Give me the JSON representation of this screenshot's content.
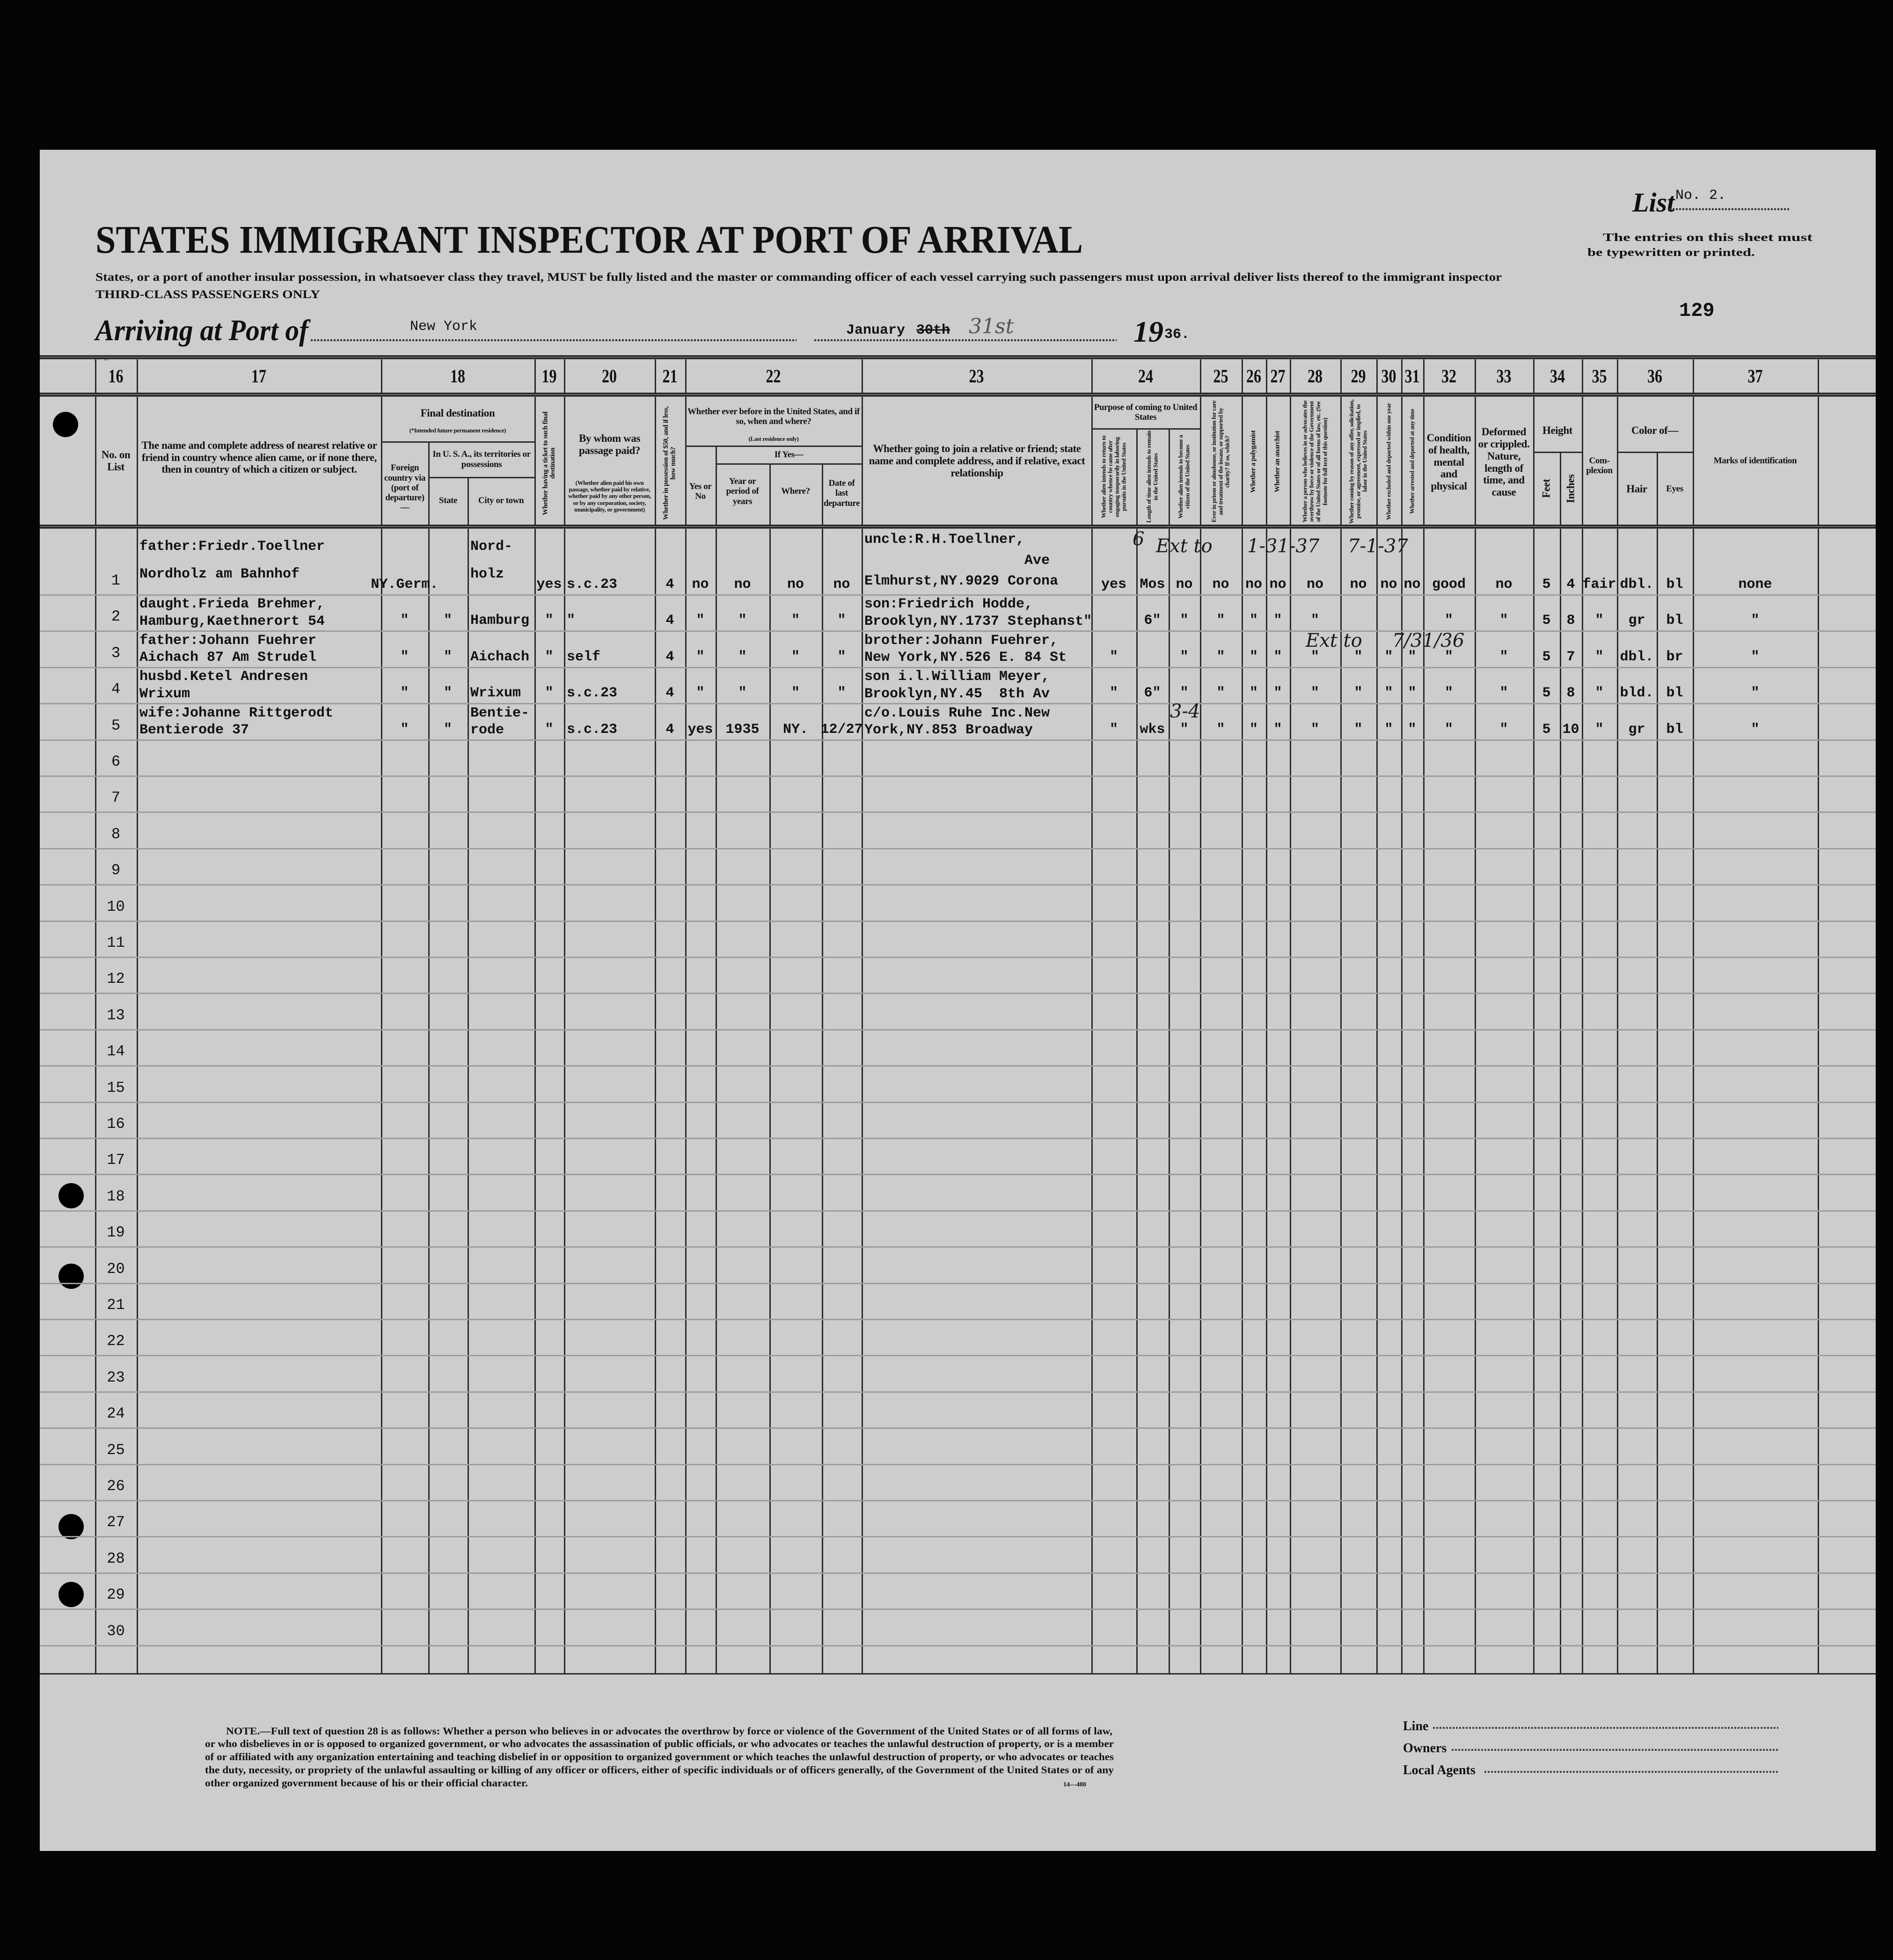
{
  "form": {
    "title": "STATES IMMIGRANT INSPECTOR AT PORT OF ARRIVAL",
    "subtitle": "States, or a port of another insular possession, in whatsoever class they travel, MUST be fully listed and the master or commanding officer of each vessel carrying such passengers must upon arrival deliver lists thereof to the immigrant inspector",
    "class_note": "THIRD-CLASS PASSENGERS ONLY",
    "list_label": "List",
    "list_number": "No. 2.",
    "instructions_line1": "The entries on this sheet must",
    "instructions_line2": "be typewritten or printed.",
    "sheet_number": "129",
    "arriving_label": "Arriving at Port of",
    "port": "New York",
    "month": "January",
    "day_struck": "30th",
    "day_handwritten": "31st",
    "year_prefix": "19",
    "year_suffix": "36.",
    "corner_mark": "14-48"
  },
  "column_numbers": [
    "16",
    "17",
    "18",
    "19",
    "20",
    "21",
    "22",
    "23",
    "24",
    "25",
    "26",
    "27",
    "28",
    "29",
    "30",
    "31",
    "32",
    "33",
    "34",
    "35",
    "36",
    "37"
  ],
  "headers": {
    "c16": "No. on List",
    "c17": "The name and complete address of nearest relative or friend in country whence alien came, or if none there, then in country of which a citizen or subject.",
    "c18_group": "Final destination",
    "c18_note": "(*Intended future permanent residence)",
    "c18_foreign": "Foreign country via (port of departure)—",
    "c18_usa": "In U. S. A., its territories or possessions",
    "c18_state": "State",
    "c18_city": "City or town",
    "c19": "Whether having a ticket to such final destination",
    "c20_title": "By whom was passage paid?",
    "c20_note": "(Whether alien paid his own passage, whether paid by relative, whether paid by any other person, or by any corporation, society, municipality, or government)",
    "c21": "Whether in possession of $50, and if less, how much?",
    "c22_group": "Whether ever before in the United States, and if so, when and where?",
    "c22_note": "(Last residence only)",
    "c22_yesno": "Yes or No",
    "c22_ifyes": "If Yes—",
    "c22_year": "Year or period of years",
    "c22_where": "Where?",
    "c22_date": "Date of last departure",
    "c23": "Whether going to join a relative or friend; state name and complete address, and if relative, exact relationship",
    "c24_group": "Purpose of coming to United States",
    "c24a": "Whether alien intends to return to country whence he came after engaging temporarily in laboring pursuits in the United States",
    "c24b": "Length of time alien intends to remain in the United States",
    "c24c": "Whether alien intends to become a citizen of the United States",
    "c25": "Ever in prison or almshouse, or institution for care and treatment of the insane, or supported by charity? If so, which?",
    "c26": "Whether a polygamist",
    "c27": "Whether an anarchist",
    "c28": "Whether a person who believes in or advocates the overthrow by force or violence of the Government of the United States or of all forms of law, etc. (See footnote for full text of this question)",
    "c29": "Whether coming by reason of any offer, solicitation, promise, or agreement, expressed or implied, to labor in the United States",
    "c30": "Whether excluded and deported within one year",
    "c31": "Whether arrested and deported at any time",
    "c32": "Condition of health, mental and physical",
    "c33": "Deformed or crippled. Nature, length of time, and cause",
    "c34_group": "Height",
    "c34a": "Feet",
    "c34b": "Inches",
    "c35": "Com- plexion",
    "c36_group": "Color of—",
    "c36a": "Hair",
    "c36b": "Eyes",
    "c37": "Marks of identification"
  },
  "row_numbers": [
    "1",
    "2",
    "3",
    "4",
    "5",
    "6",
    "7",
    "8",
    "9",
    "10",
    "11",
    "12",
    "13",
    "14",
    "15",
    "16",
    "17",
    "18",
    "19",
    "20",
    "21",
    "22",
    "23",
    "24",
    "25",
    "26",
    "27",
    "28",
    "29",
    "30"
  ],
  "records": [
    {
      "name": [
        "father:Friedr.Toellner",
        "Nordholz am Bahnhof"
      ],
      "foreign": "NY.Germ.",
      "state": "",
      "city": [
        "Nord-",
        "holz"
      ],
      "ticket": "yes",
      "paid_by": "s.c.23",
      "money": "4",
      "before_yn": "no",
      "before_year": "no",
      "before_where": "no",
      "before_date": "no",
      "join": [
        "uncle:R.H.Toellner,",
        "                   Ave",
        "Elmhurst,NY.9029 Corona"
      ],
      "purpose_return": "yes",
      "purpose_length": "Mos",
      "purpose_citizen": "no",
      "prison": "no",
      "polygamist": "no",
      "anarchist": "no",
      "overthrow": "no",
      "labor_offer": "no",
      "excluded": "no",
      "arrested": "no",
      "health": "good",
      "deformed": "no",
      "feet": "5",
      "inches": "4",
      "complexion": "fair",
      "hair": "dbl.",
      "eyes": "bl",
      "marks": "none"
    },
    {
      "name": [
        "daught.Frieda Brehmer,",
        "Hamburg,Kaethnerort 54"
      ],
      "foreign": "\"",
      "state": "\"",
      "city": "Hamburg",
      "ticket": "\"",
      "paid_by": "\"",
      "money": "4",
      "before_yn": "\"",
      "before_year": "\"",
      "before_where": "\"",
      "before_date": "\"",
      "join": [
        "son:Friedrich Hodde,",
        "Brooklyn,NY.1737 Stephanst\""
      ],
      "purpose_return": "",
      "purpose_length": "6\"",
      "purpose_citizen": "\"",
      "prison": "\"",
      "polygamist": "\"",
      "anarchist": "\"",
      "overthrow": "\"",
      "labor_offer": "",
      "excluded": "",
      "arrested": "",
      "health": "\"",
      "deformed": "\"",
      "feet": "5",
      "inches": "8",
      "complexion": "\"",
      "hair": "gr",
      "eyes": "bl",
      "marks": "\""
    },
    {
      "name": [
        "father:Johann Fuehrer",
        "Aichach 87 Am Strudel"
      ],
      "foreign": "\"",
      "state": "\"",
      "city": "Aichach",
      "ticket": "\"",
      "paid_by": "self",
      "money": "4",
      "before_yn": "\"",
      "before_year": "\"",
      "before_where": "\"",
      "before_date": "\"",
      "join": [
        "brother:Johann Fuehrer,",
        "New York,NY.526 E. 84 St"
      ],
      "purpose_return": "\"",
      "purpose_length": "",
      "purpose_citizen": "\"",
      "prison": "\"",
      "polygamist": "\"",
      "anarchist": "\"",
      "overthrow": "\"",
      "labor_offer": "\"",
      "excluded": "\"",
      "arrested": "\"",
      "health": "\"",
      "deformed": "\"",
      "feet": "5",
      "inches": "7",
      "complexion": "\"",
      "hair": "dbl.",
      "eyes": "br",
      "marks": "\""
    },
    {
      "name": [
        "husbd.Ketel Andresen",
        "Wrixum"
      ],
      "foreign": "\"",
      "state": "\"",
      "city": "Wrixum",
      "ticket": "\"",
      "paid_by": "s.c.23",
      "money": "4",
      "before_yn": "\"",
      "before_year": "\"",
      "before_where": "\"",
      "before_date": "\"",
      "join": [
        "son i.l.William Meyer,",
        "Brooklyn,NY.45  8th Av"
      ],
      "purpose_return": "\"",
      "purpose_length": "6\"",
      "purpose_citizen": "\"",
      "prison": "\"",
      "polygamist": "\"",
      "anarchist": "\"",
      "overthrow": "\"",
      "labor_offer": "\"",
      "excluded": "\"",
      "arrested": "\"",
      "health": "\"",
      "deformed": "\"",
      "feet": "5",
      "inches": "8",
      "complexion": "\"",
      "hair": "bld.",
      "eyes": "bl",
      "marks": "\""
    },
    {
      "name": [
        "wife:Johanne Rittgerodt",
        "Bentierode 37"
      ],
      "foreign": "\"",
      "state": "\"",
      "city": [
        "Bentie-",
        "rode"
      ],
      "ticket": "\"",
      "paid_by": "s.c.23",
      "money": "4",
      "before_yn": "yes",
      "before_year": "1935",
      "before_where": "NY.",
      "before_date": "12/27",
      "join": [
        "c/o.Louis Ruhe Inc.New",
        "York,NY.853 Broadway"
      ],
      "purpose_return": "\"",
      "purpose_length": "wks",
      "purpose_citizen": "\"",
      "prison": "\"",
      "polygamist": "\"",
      "anarchist": "\"",
      "overthrow": "\"",
      "labor_offer": "\"",
      "excluded": "\"",
      "arrested": "\"",
      "health": "\"",
      "deformed": "\"",
      "feet": "5",
      "inches": "10",
      "complexion": "\"",
      "hair": "gr",
      "eyes": "bl",
      "marks": "\""
    }
  ],
  "annotations": {
    "ext1": "Ext to",
    "ext1_date": "1-31-37",
    "ext1_date2": "7-1-37",
    "ext3": "Ext to",
    "ext3_date": "7/31/36",
    "r5_length": "3-4",
    "r1_length": "6"
  },
  "footer": {
    "note_lines": [
      "NOTE.—Full text of question 28 is as follows: Whether a person who believes in or advocates the overthrow by force or violence of the Government of the United States or of all forms of law,",
      "or who disbelieves in or is opposed to organized government, or who advocates the assassination of public officials, or who advocates or teaches the unlawful destruction of property, or is a member",
      "of or affiliated with any organization entertaining and teaching disbelief in or opposition to organized government or which teaches the unlawful destruction of property, or who advocates or teaches",
      "the duty, necessity, or propriety of the unlawful assaulting or killing of any officer or officers, either of specific individuals or of officers generally, of the Government of the United States or of any",
      "other organized government because of his or their official character."
    ],
    "form_number": "14—480",
    "line_label": "Line",
    "owners_label": "Owners",
    "agents_label": "Local Agents"
  }
}
